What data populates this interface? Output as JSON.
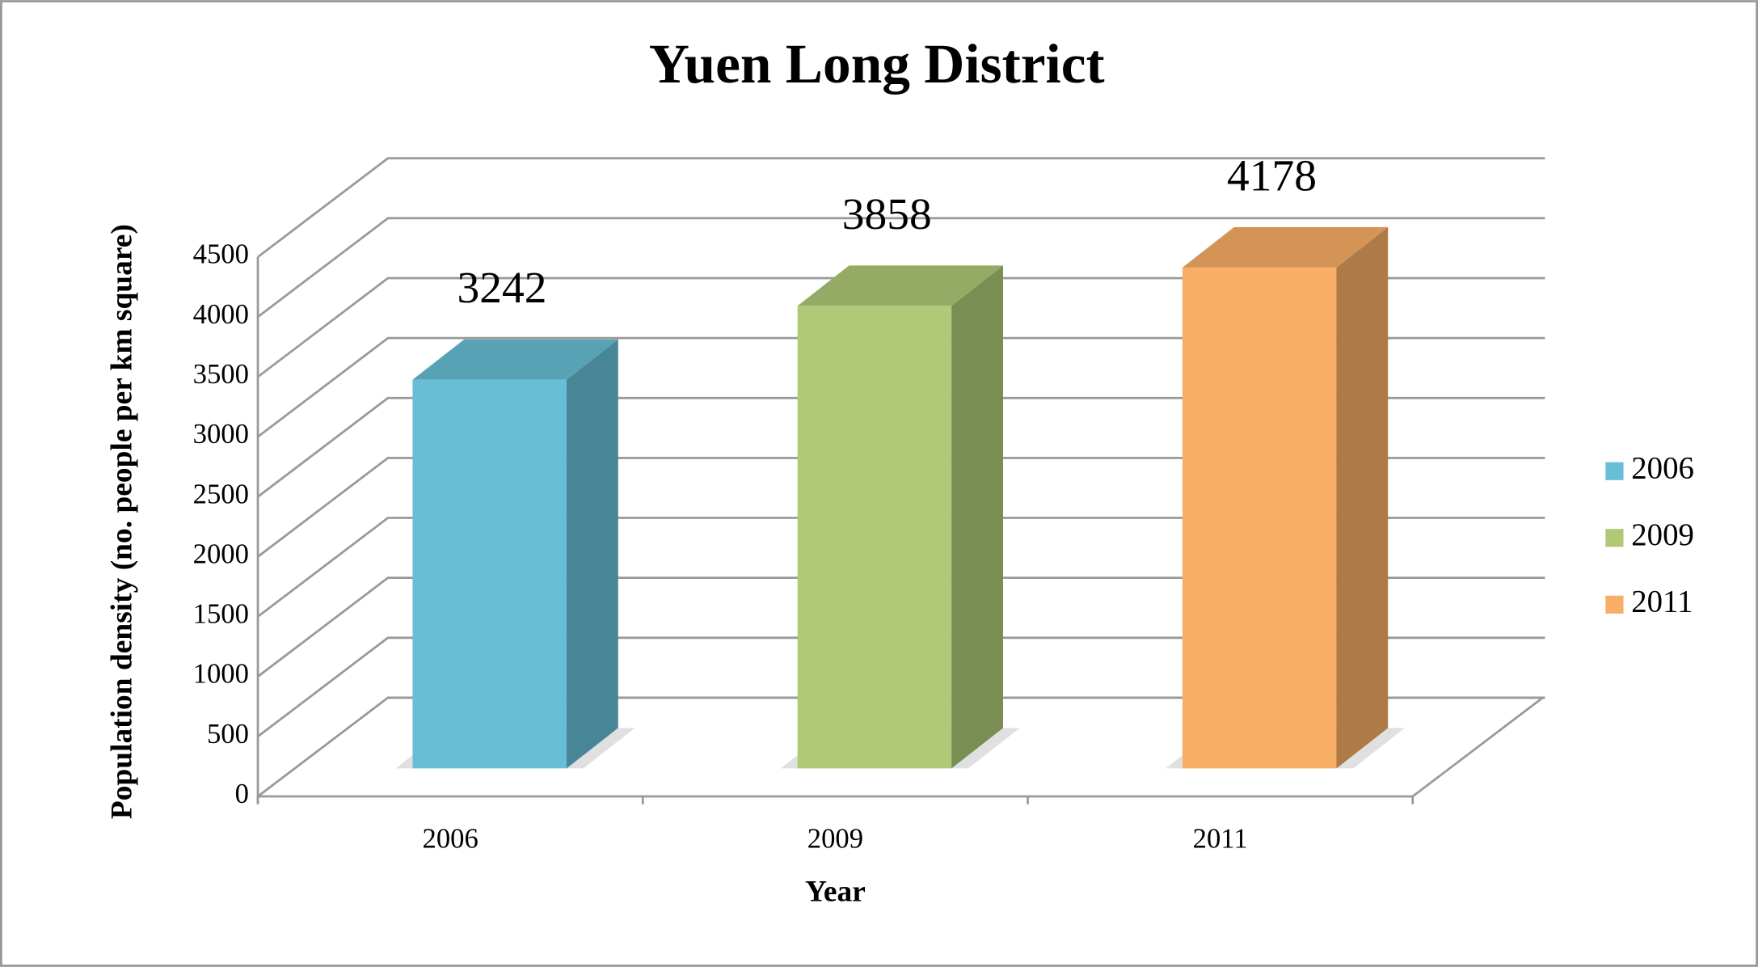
{
  "chart_data": {
    "type": "bar3d",
    "title": "Yuen Long District",
    "x_label": "Year",
    "y_label": "Population density (no. people per km square)",
    "categories": [
      "2006",
      "2009",
      "2011"
    ],
    "values": [
      3242,
      3858,
      4178
    ],
    "colors": [
      "#67bed6",
      "#afc977",
      "#f8ae65"
    ],
    "ylim": [
      0,
      4500
    ],
    "yticks": [
      0,
      500,
      1000,
      1500,
      2000,
      2500,
      3000,
      3500,
      4000,
      4500
    ],
    "grid": true,
    "legend": "right"
  }
}
